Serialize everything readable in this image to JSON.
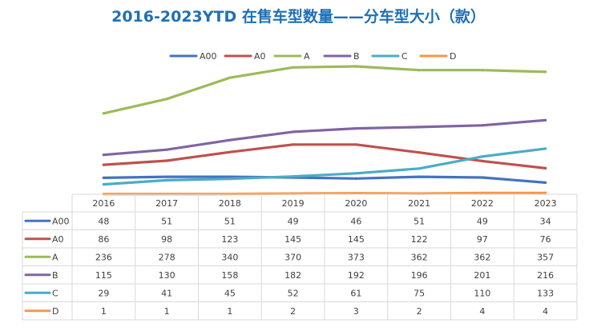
{
  "chart_data": {
    "type": "line",
    "title": "2016-2023YTD 在售车型数量——分车型大小（款）",
    "categories": [
      "2016",
      "2017",
      "2018",
      "2019",
      "2020",
      "2021",
      "2022",
      "2023"
    ],
    "series": [
      {
        "name": "A00",
        "color": "#4472c4",
        "values": [
          48,
          51,
          51,
          49,
          46,
          51,
          49,
          34
        ]
      },
      {
        "name": "A0",
        "color": "#c0504d",
        "values": [
          86,
          98,
          123,
          145,
          145,
          122,
          97,
          76
        ]
      },
      {
        "name": "A",
        "color": "#9bbb59",
        "values": [
          236,
          278,
          340,
          370,
          373,
          362,
          362,
          357
        ]
      },
      {
        "name": "B",
        "color": "#8064a2",
        "values": [
          115,
          130,
          158,
          182,
          192,
          196,
          201,
          216
        ]
      },
      {
        "name": "C",
        "color": "#4bacc6",
        "values": [
          29,
          41,
          45,
          52,
          61,
          75,
          110,
          133
        ]
      },
      {
        "name": "D",
        "color": "#f79646",
        "values": [
          1,
          1,
          1,
          2,
          3,
          2,
          4,
          4
        ]
      }
    ],
    "ylim": [
      0,
      380
    ],
    "legend_position": "top",
    "data_table": true,
    "grid": false
  }
}
